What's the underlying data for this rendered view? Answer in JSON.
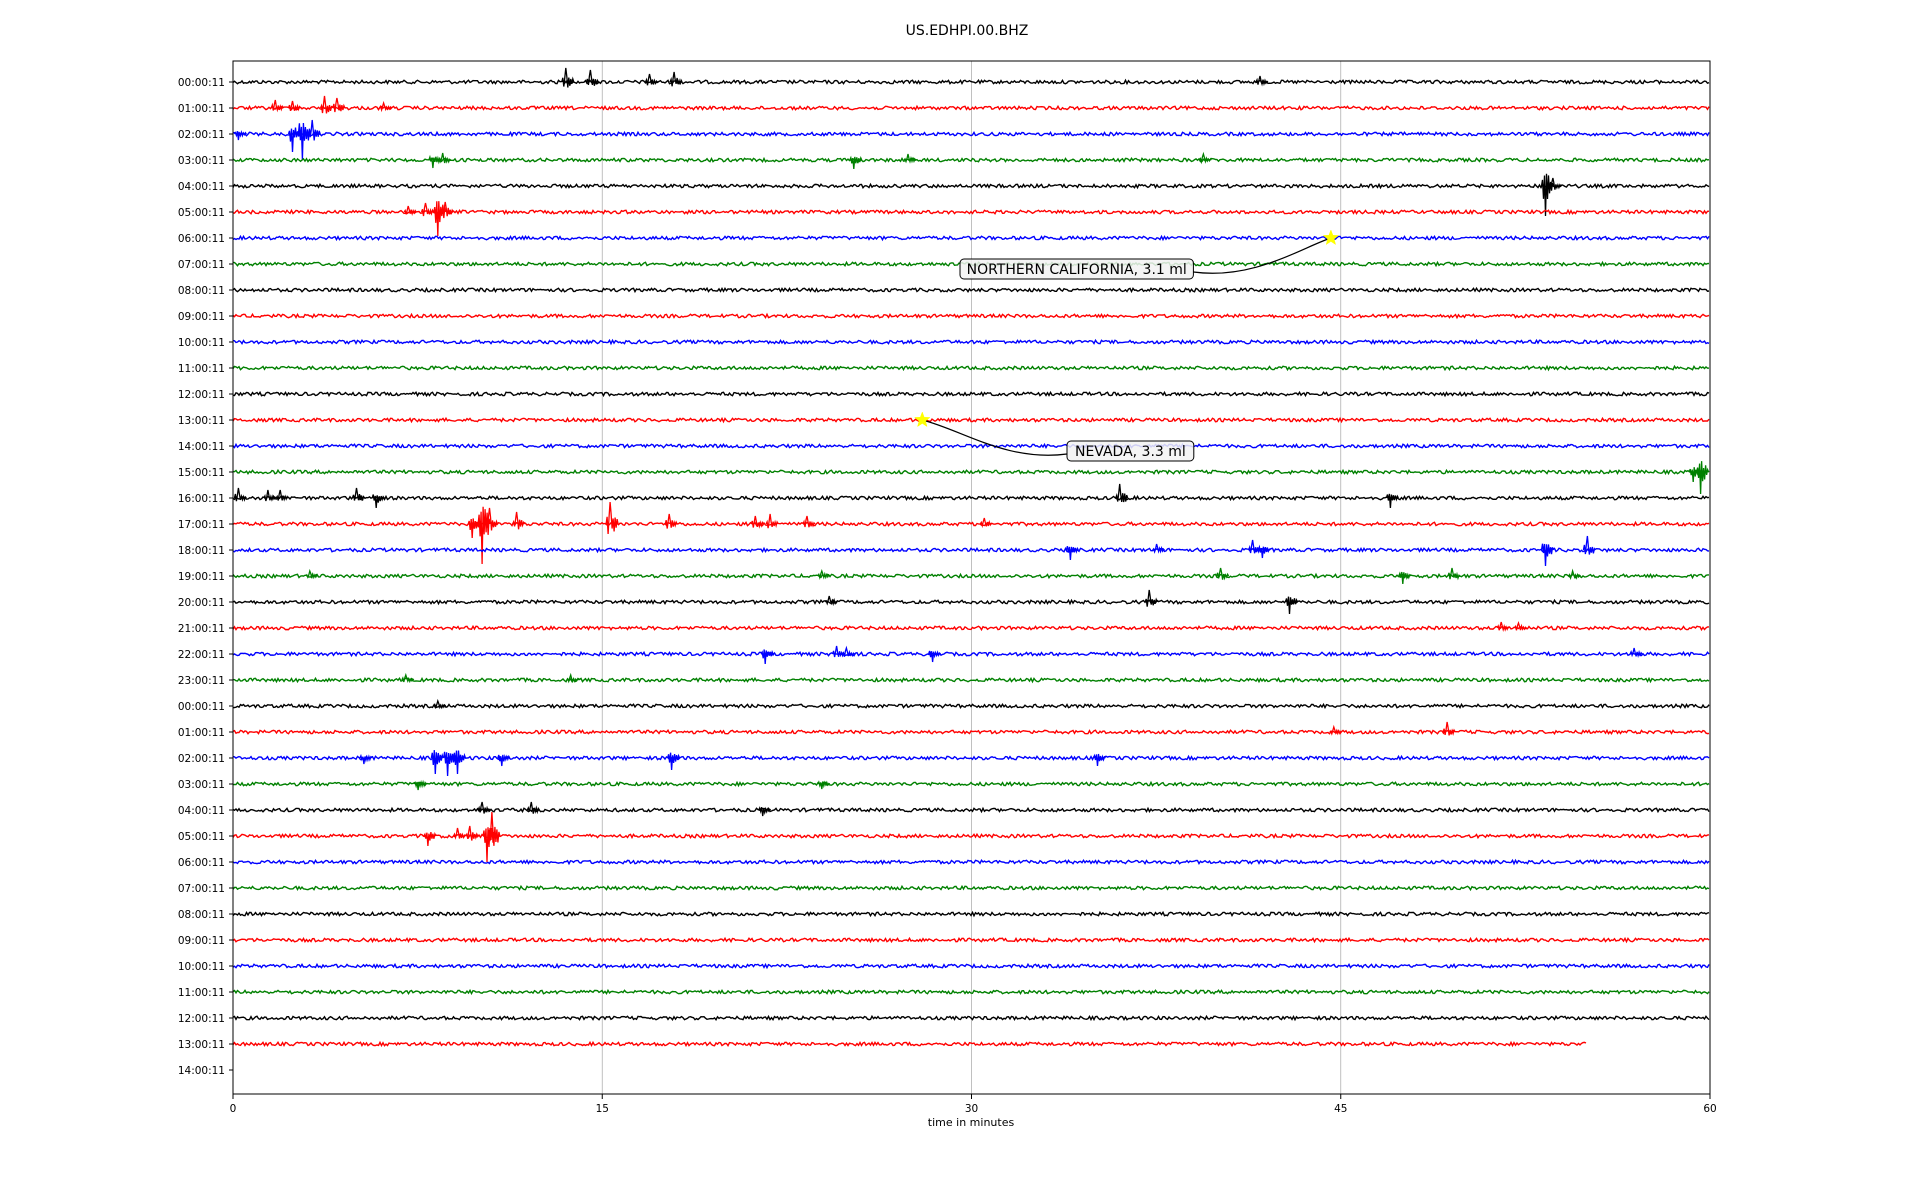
{
  "chart_data": {
    "type": "line",
    "title": "US.EDHPI.00.BHZ",
    "xlabel": "time in minutes",
    "ylabel": "",
    "xlim": [
      0,
      60
    ],
    "x_ticks": [
      0,
      15,
      30,
      45,
      60
    ],
    "x_tick_labels": [
      "0",
      "15",
      "30",
      "45",
      "60"
    ],
    "grid": "vertical lines at x ticks",
    "row_labels": [
      "00:00:11",
      "01:00:11",
      "02:00:11",
      "03:00:11",
      "04:00:11",
      "05:00:11",
      "06:00:11",
      "07:00:11",
      "08:00:11",
      "09:00:11",
      "10:00:11",
      "11:00:11",
      "12:00:11",
      "13:00:11",
      "14:00:11",
      "15:00:11",
      "16:00:11",
      "17:00:11",
      "18:00:11",
      "19:00:11",
      "20:00:11",
      "21:00:11",
      "22:00:11",
      "23:00:11",
      "00:00:11",
      "01:00:11",
      "02:00:11",
      "03:00:11",
      "04:00:11",
      "05:00:11",
      "06:00:11",
      "07:00:11",
      "08:00:11",
      "09:00:11",
      "10:00:11",
      "11:00:11",
      "12:00:11",
      "13:00:11",
      "14:00:11"
    ],
    "trace_colors": [
      "#000000",
      "#ff0000",
      "#0000ff",
      "#008000"
    ],
    "traces": [
      {
        "row": 0,
        "end_minute": 60,
        "events": [
          [
            13.6,
            14
          ],
          [
            14.6,
            12
          ],
          [
            17.0,
            8
          ],
          [
            18.0,
            10
          ],
          [
            41.8,
            6
          ]
        ]
      },
      {
        "row": 1,
        "end_minute": 60,
        "events": [
          [
            1.8,
            8
          ],
          [
            2.5,
            7
          ],
          [
            3.8,
            12
          ],
          [
            4.3,
            10
          ],
          [
            6.2,
            5
          ]
        ]
      },
      {
        "row": 2,
        "end_minute": 60,
        "events": [
          [
            0.3,
            -6
          ],
          [
            2.5,
            -18
          ],
          [
            2.9,
            -26
          ],
          [
            3.3,
            14
          ]
        ]
      },
      {
        "row": 3,
        "end_minute": 60,
        "events": [
          [
            8.2,
            -8
          ],
          [
            8.6,
            7
          ],
          [
            25.3,
            -9
          ],
          [
            27.5,
            6
          ],
          [
            39.5,
            6
          ]
        ]
      },
      {
        "row": 4,
        "end_minute": 60,
        "events": [
          [
            53.4,
            -30
          ],
          [
            53.7,
            8
          ]
        ]
      },
      {
        "row": 5,
        "end_minute": 60,
        "events": [
          [
            7.2,
            6
          ],
          [
            7.9,
            9
          ],
          [
            8.4,
            -24
          ],
          [
            8.7,
            10
          ]
        ]
      },
      {
        "row": 6,
        "end_minute": 60,
        "events": []
      },
      {
        "row": 7,
        "end_minute": 60,
        "events": []
      },
      {
        "row": 8,
        "end_minute": 60,
        "events": []
      },
      {
        "row": 9,
        "end_minute": 60,
        "events": []
      },
      {
        "row": 10,
        "end_minute": 60,
        "events": []
      },
      {
        "row": 11,
        "end_minute": 60,
        "events": []
      },
      {
        "row": 12,
        "end_minute": 60,
        "events": []
      },
      {
        "row": 13,
        "end_minute": 60,
        "events": []
      },
      {
        "row": 14,
        "end_minute": 60,
        "events": []
      },
      {
        "row": 15,
        "end_minute": 60,
        "events": [
          [
            59.4,
            -10
          ],
          [
            59.7,
            -22
          ]
        ]
      },
      {
        "row": 16,
        "end_minute": 60,
        "events": [
          [
            0.3,
            10
          ],
          [
            1.5,
            8
          ],
          [
            2.0,
            8
          ],
          [
            5.1,
            10
          ],
          [
            5.9,
            -10
          ],
          [
            36.1,
            14
          ],
          [
            47.1,
            -10
          ]
        ]
      },
      {
        "row": 17,
        "end_minute": 60,
        "events": [
          [
            9.8,
            -14
          ],
          [
            10.2,
            -40
          ],
          [
            10.5,
            16
          ],
          [
            11.6,
            12
          ],
          [
            15.4,
            22
          ],
          [
            17.8,
            10
          ],
          [
            21.3,
            8
          ],
          [
            21.9,
            10
          ],
          [
            23.4,
            8
          ],
          [
            30.6,
            6
          ]
        ]
      },
      {
        "row": 18,
        "end_minute": 60,
        "events": [
          [
            34.1,
            -10
          ],
          [
            37.6,
            6
          ],
          [
            41.5,
            10
          ],
          [
            41.9,
            -8
          ],
          [
            53.4,
            -16
          ],
          [
            55.1,
            14
          ]
        ]
      },
      {
        "row": 19,
        "end_minute": 60,
        "events": [
          [
            3.2,
            5
          ],
          [
            24.0,
            5
          ],
          [
            40.2,
            8
          ],
          [
            47.6,
            -8
          ],
          [
            49.6,
            8
          ],
          [
            54.5,
            5
          ]
        ]
      },
      {
        "row": 20,
        "end_minute": 60,
        "events": [
          [
            24.3,
            6
          ],
          [
            37.3,
            12
          ],
          [
            43.0,
            -12
          ]
        ]
      },
      {
        "row": 21,
        "end_minute": 60,
        "events": [
          [
            51.6,
            6
          ],
          [
            52.3,
            5
          ]
        ]
      },
      {
        "row": 22,
        "end_minute": 60,
        "events": [
          [
            21.7,
            -10
          ],
          [
            24.6,
            8
          ],
          [
            25.0,
            6
          ],
          [
            28.5,
            -8
          ],
          [
            57.0,
            6
          ]
        ]
      },
      {
        "row": 23,
        "end_minute": 60,
        "events": [
          [
            7.1,
            5
          ],
          [
            13.8,
            5
          ]
        ]
      },
      {
        "row": 24,
        "end_minute": 60,
        "events": [
          [
            8.4,
            5
          ]
        ]
      },
      {
        "row": 25,
        "end_minute": 60,
        "events": [
          [
            44.8,
            5
          ],
          [
            49.4,
            10
          ]
        ]
      },
      {
        "row": 26,
        "end_minute": 60,
        "events": [
          [
            5.4,
            -6
          ],
          [
            8.3,
            -16
          ],
          [
            8.8,
            -18
          ],
          [
            9.2,
            -16
          ],
          [
            11.0,
            -8
          ],
          [
            17.9,
            -12
          ],
          [
            35.2,
            -8
          ]
        ]
      },
      {
        "row": 27,
        "end_minute": 60,
        "events": [
          [
            7.6,
            -6
          ],
          [
            24.0,
            -5
          ]
        ]
      },
      {
        "row": 28,
        "end_minute": 60,
        "events": [
          [
            10.2,
            8
          ],
          [
            12.2,
            8
          ],
          [
            21.6,
            -6
          ]
        ]
      },
      {
        "row": 29,
        "end_minute": 60,
        "events": [
          [
            8.0,
            -10
          ],
          [
            9.2,
            8
          ],
          [
            9.7,
            10
          ],
          [
            10.4,
            -26
          ],
          [
            10.6,
            24
          ]
        ]
      },
      {
        "row": 30,
        "end_minute": 60,
        "events": []
      },
      {
        "row": 31,
        "end_minute": 60,
        "events": []
      },
      {
        "row": 32,
        "end_minute": 60,
        "events": []
      },
      {
        "row": 33,
        "end_minute": 60,
        "events": []
      },
      {
        "row": 34,
        "end_minute": 60,
        "events": []
      },
      {
        "row": 35,
        "end_minute": 60,
        "events": []
      },
      {
        "row": 36,
        "end_minute": 60,
        "events": []
      },
      {
        "row": 37,
        "end_minute": 55,
        "events": []
      }
    ],
    "annotations": [
      {
        "text": "NORTHERN CALIFORNIA, 3.1 ml",
        "row": 6,
        "minute": 44.6,
        "marker": "star",
        "marker_color": "#ffff00"
      },
      {
        "text": "NEVADA, 3.3 ml",
        "row": 13,
        "minute": 28.0,
        "marker": "star",
        "marker_color": "#ffff00"
      }
    ]
  }
}
